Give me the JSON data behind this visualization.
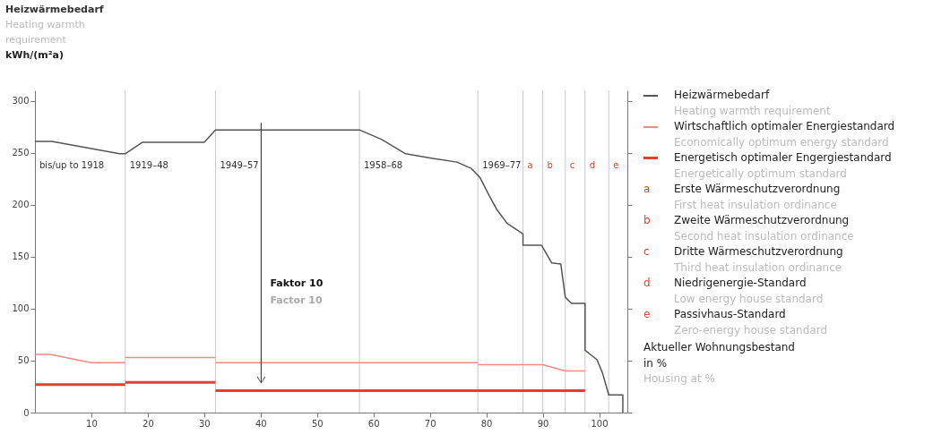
{
  "chart_data": {
    "type": "line",
    "title": "Heizwärmebedarf",
    "subtitle": "Heating warmth requirement",
    "ylabel": "kWh/(m²a)",
    "xlabel": "Aktueller Wohnungsbestand in %",
    "xlim": [
      0,
      105
    ],
    "xticks": [
      10,
      20,
      30,
      40,
      50,
      60,
      70,
      80,
      90,
      100
    ],
    "ylim": [
      0,
      310
    ],
    "yticks": [
      0,
      50,
      100,
      150,
      200,
      250,
      300
    ],
    "grid": false,
    "legend": "right",
    "series": [
      {
        "name": "Heizwärmebedarf",
        "color": "#555555",
        "x": [
          0,
          3,
          15,
          16,
          19,
          30,
          32,
          57.5,
          61.4,
          65.7,
          70,
          74.8,
          77.3,
          78.9,
          80.5,
          81.9,
          83.7,
          86.5,
          86.5,
          89.8,
          91.6,
          93.2,
          94,
          95.1,
          97.5,
          97.5,
          99.6,
          100.6,
          101.7,
          104.2,
          104.2
        ],
        "values": [
          261,
          261,
          249,
          249,
          260,
          260,
          272,
          272,
          263,
          249,
          245,
          241,
          235,
          226,
          209,
          195,
          182,
          172,
          161,
          161,
          144,
          143,
          111,
          105,
          105,
          60,
          51,
          38,
          17,
          17,
          0
        ]
      },
      {
        "name": "Wirtschaftlich optimaler Energiestandard",
        "color": "#f08a82",
        "x": [
          0,
          2.7,
          10,
          16
        ],
        "values": [
          56,
          56,
          48,
          48
        ]
      },
      {
        "name": "Energetisch optimaler Engergiestandard",
        "color": "#e5402e",
        "x": [
          0,
          16
        ],
        "values": [
          27,
          27
        ]
      },
      {
        "color": "#f08a82",
        "x": [
          16,
          32
        ],
        "values": [
          53,
          53
        ]
      },
      {
        "color": "#f08a82",
        "x": [
          32,
          78.5
        ],
        "values": [
          48,
          48
        ]
      },
      {
        "color": "#f08a82",
        "x": [
          78.5,
          90,
          94,
          97.5
        ],
        "values": [
          46,
          46,
          40,
          40
        ]
      },
      {
        "color": "#e5402e",
        "x": [
          16,
          32
        ],
        "values": [
          29,
          29
        ]
      },
      {
        "color": "#e5402e",
        "x": [
          32,
          97.5
        ],
        "values": [
          21,
          21
        ]
      }
    ],
    "ref_lines": [
      {
        "axis": "x",
        "value": 16,
        "label": "1919–48",
        "color": "#c8c8c8"
      },
      {
        "axis": "x",
        "value": 32,
        "label": "1949–57",
        "color": "#c8c8c8"
      },
      {
        "axis": "x",
        "value": 57.5,
        "label": "1958–68",
        "color": "#c8c8c8"
      },
      {
        "axis": "x",
        "value": 78.5,
        "label": "1969–77",
        "color": "#c8c8c8"
      },
      {
        "axis": "x",
        "value": 86.5,
        "label": "a",
        "color": "#c8c8c8"
      },
      {
        "axis": "x",
        "value": 90,
        "label": "b",
        "color": "#c8c8c8"
      },
      {
        "axis": "x",
        "value": 94,
        "label": "c",
        "color": "#c8c8c8"
      },
      {
        "axis": "x",
        "value": 97.5,
        "label": "d",
        "color": "#c8c8c8"
      },
      {
        "axis": "x",
        "value": 101.7,
        "label": "e",
        "color": "#c8c8c8"
      }
    ],
    "annotations": [
      "bis/up to 1918",
      "Heating warmth requirement",
      "Economically optimum energy standard",
      "Energetically optimum standard",
      "Erste Wärmeschutzverordnung",
      "First heat insulation ordinance",
      "Zweite Wärmeschutzverordnung",
      "Second heat insulation ordinance",
      "Dritte Wärmeschutzverordnung",
      "Third heat insulation ordinance",
      "Niedrigenergie-Standard",
      "Low energy house standard",
      "Passivhaus-Standard",
      "Zero-energy house standard",
      "Housing at %",
      "Faktor 10",
      "Factor 10"
    ]
  }
}
